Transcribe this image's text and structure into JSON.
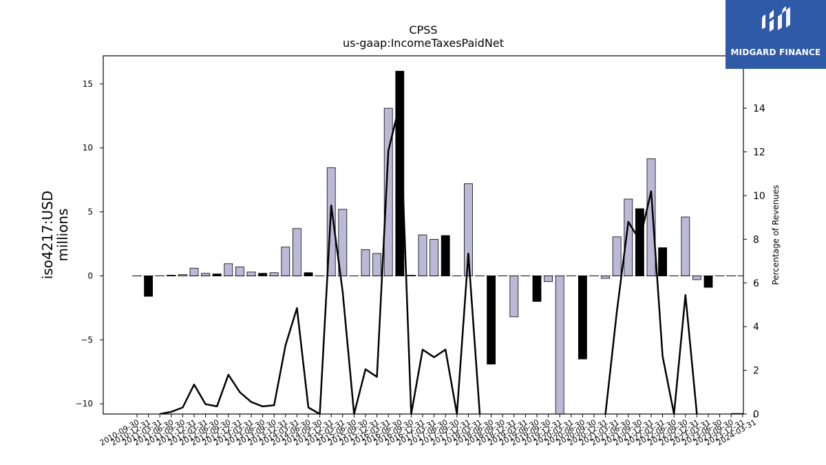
{
  "brand": {
    "name": "MIDGARD FINANCE",
    "logo_icon": "midgard-logo-icon",
    "background": "#2f5aa8"
  },
  "chart_data": {
    "type": "bar",
    "title": "CPSS",
    "subtitle": "us-gaap:IncomeTaxesPaidNet",
    "ylabel": "iso4217:USD\nmillions",
    "y2label": "Percentage of Revenues",
    "ylim": [
      -10.8,
      17.2
    ],
    "y2lim": [
      0,
      16.4
    ],
    "yticks": [
      -10,
      -5,
      0,
      5,
      10,
      15
    ],
    "yticklabels": [
      "−10",
      "−5",
      "0",
      "5",
      "10",
      "15"
    ],
    "y2ticks": [
      0,
      2,
      4,
      6,
      8,
      10,
      12,
      14
    ],
    "y2ticklabels": [
      "0",
      "2",
      "4",
      "6",
      "8",
      "10",
      "12",
      "14"
    ],
    "categories": [
      "2010-09-30",
      "2010-12-31",
      "2011-03-31",
      "2011-06-30",
      "2011-09-30",
      "2011-12-31",
      "2012-03-31",
      "2012-06-30",
      "2012-09-30",
      "2012-12-31",
      "2013-03-31",
      "2013-06-30",
      "2013-09-30",
      "2013-12-31",
      "2014-03-31",
      "2014-06-30",
      "2014-09-30",
      "2014-12-31",
      "2015-03-31",
      "2015-06-30",
      "2015-09-30",
      "2015-12-31",
      "2016-03-31",
      "2016-06-30",
      "2016-09-30",
      "2016-12-31",
      "2017-03-31",
      "2017-06-30",
      "2017-09-30",
      "2017-12-31",
      "2018-03-31",
      "2018-06-30",
      "2018-09-30",
      "2018-12-31",
      "2019-03-31",
      "2019-06-30",
      "2019-09-30",
      "2019-12-31",
      "2020-03-31",
      "2020-06-30",
      "2020-09-30",
      "2020-12-31",
      "2021-03-31",
      "2021-06-30",
      "2021-09-30",
      "2021-12-31",
      "2022-03-31",
      "2022-06-30",
      "2022-09-30",
      "2022-12-31",
      "2023-03-31",
      "2023-06-30",
      "2023-09-30",
      "2023-12-31",
      "2024-03-31"
    ],
    "series": [
      {
        "kind": "bar",
        "values": [
          0,
          -1.6,
          0,
          0.05,
          0.1,
          0.6,
          0.2,
          0.15,
          0.95,
          0.7,
          0.3,
          0.2,
          0.25,
          2.25,
          3.7,
          0.25,
          0,
          8.45,
          5.2,
          0,
          2.05,
          1.75,
          13.1,
          16,
          0.05,
          3.2,
          2.85,
          3.15,
          0,
          7.2,
          0,
          -6.9,
          0,
          -3.2,
          0,
          -2,
          -0.45,
          -12,
          0,
          -6.5,
          0,
          -0.2,
          3.05,
          6.0,
          5.25,
          9.15,
          2.2,
          0,
          4.6,
          -0.3,
          -0.9,
          0,
          0,
          0,
          0
        ],
        "colors": [
          "n",
          "b",
          "n",
          "b",
          "n",
          "n",
          "n",
          "b",
          "n",
          "n",
          "n",
          "b",
          "n",
          "n",
          "n",
          "b",
          "n",
          "n",
          "n",
          "b",
          "n",
          "n",
          "n",
          "b",
          "n",
          "n",
          "n",
          "b",
          "n",
          "n",
          "n",
          "b",
          "n",
          "n",
          "n",
          "b",
          "n",
          "n",
          "n",
          "b",
          "n",
          "n",
          "n",
          "n",
          "b",
          "n",
          "b",
          "n",
          "n",
          "n",
          "b",
          "n",
          "n",
          "n",
          "n"
        ]
      },
      {
        "kind": "line",
        "axis": "y2",
        "values": [
          0,
          null,
          0,
          0.1,
          0.3,
          1.35,
          0.45,
          0.35,
          1.8,
          1.0,
          0.55,
          0.35,
          0.4,
          3.15,
          4.85,
          0.3,
          0,
          9.55,
          5.6,
          0,
          2.05,
          1.7,
          12.05,
          14.2,
          0,
          2.95,
          2.6,
          2.95,
          0,
          7.35,
          0,
          null,
          null,
          null,
          null,
          null,
          null,
          null,
          null,
          null,
          null,
          0,
          4.7,
          8.8,
          7.95,
          10.2,
          2.65,
          0,
          5.45,
          0,
          null,
          null,
          0,
          0,
          0
        ]
      }
    ],
    "palette": {
      "n": "#bcb8d8",
      "b": "#000000",
      "line": "#000000"
    },
    "grid": false,
    "legend": "none"
  }
}
